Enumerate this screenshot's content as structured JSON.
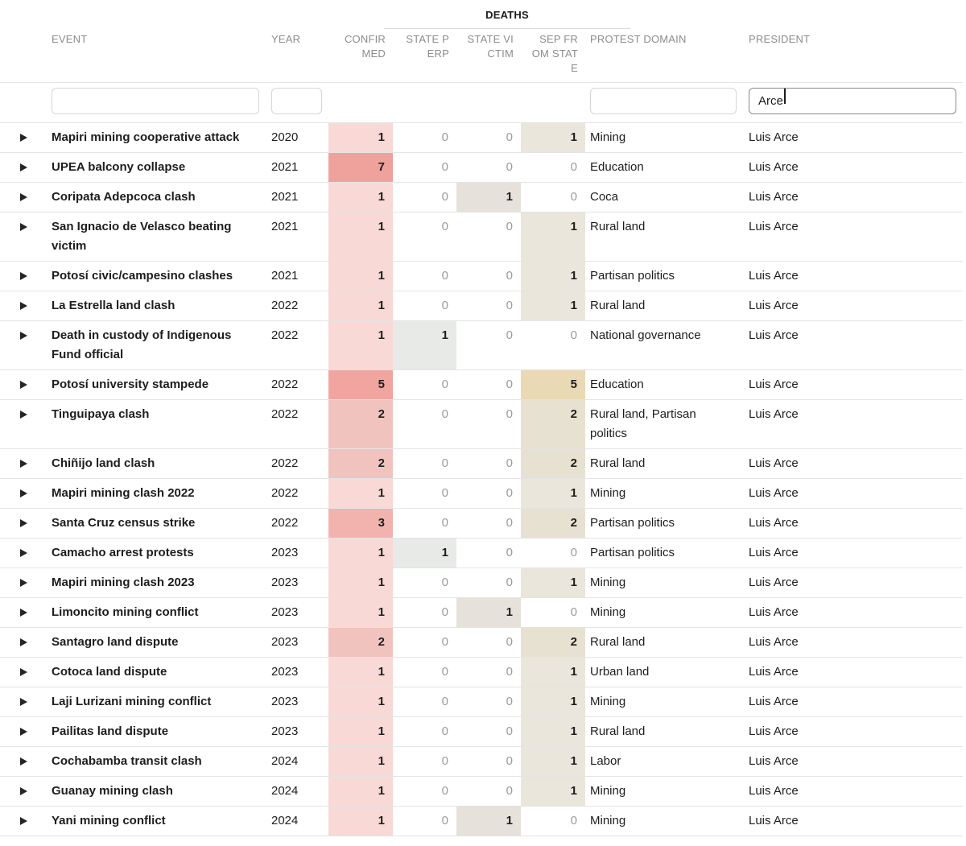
{
  "table": {
    "group_label": "DEATHS",
    "columns": [
      {
        "key": "event",
        "label": "EVENT"
      },
      {
        "key": "year",
        "label": "YEAR"
      },
      {
        "key": "confirmed",
        "label": "CONFIRMED"
      },
      {
        "key": "state_perp",
        "label": "STATE PERP"
      },
      {
        "key": "state_victim",
        "label": "STATE VICTIM"
      },
      {
        "key": "sep_from_state",
        "label": "SEP FROM STATE"
      },
      {
        "key": "protest_domain",
        "label": "PROTEST DOMAIN"
      },
      {
        "key": "president",
        "label": "PRESIDENT"
      }
    ],
    "filters": {
      "event": "",
      "year": "",
      "protest_domain": "",
      "president": "Arce"
    },
    "rows": [
      {
        "event": "Mapiri mining cooperative attack",
        "year": "2020",
        "confirmed": 1,
        "state_perp": 0,
        "state_victim": 0,
        "sep_from_state": 1,
        "protest_domain": "Mining",
        "president": "Luis Arce"
      },
      {
        "event": "UPEA balcony collapse",
        "year": "2021",
        "confirmed": 7,
        "state_perp": 0,
        "state_victim": 0,
        "sep_from_state": 0,
        "protest_domain": "Education",
        "president": "Luis Arce"
      },
      {
        "event": "Coripata Adepcoca clash",
        "year": "2021",
        "confirmed": 1,
        "state_perp": 0,
        "state_victim": 1,
        "sep_from_state": 0,
        "protest_domain": "Coca",
        "president": "Luis Arce"
      },
      {
        "event": "San Ignacio de Velasco beating victim",
        "year": "2021",
        "confirmed": 1,
        "state_perp": 0,
        "state_victim": 0,
        "sep_from_state": 1,
        "protest_domain": "Rural land",
        "president": "Luis Arce"
      },
      {
        "event": "Potosí civic/campesino clashes",
        "year": "2021",
        "confirmed": 1,
        "state_perp": 0,
        "state_victim": 0,
        "sep_from_state": 1,
        "protest_domain": "Partisan politics",
        "president": "Luis Arce"
      },
      {
        "event": "La Estrella land clash",
        "year": "2022",
        "confirmed": 1,
        "state_perp": 0,
        "state_victim": 0,
        "sep_from_state": 1,
        "protest_domain": "Rural land",
        "president": "Luis Arce"
      },
      {
        "event": "Death in custody of Indigenous Fund official",
        "year": "2022",
        "confirmed": 1,
        "state_perp": 1,
        "state_victim": 0,
        "sep_from_state": 0,
        "protest_domain": "National governance",
        "president": "Luis Arce"
      },
      {
        "event": "Potosí university stampede",
        "year": "2022",
        "confirmed": 5,
        "state_perp": 0,
        "state_victim": 0,
        "sep_from_state": 5,
        "protest_domain": "Education",
        "president": "Luis Arce"
      },
      {
        "event": "Tinguipaya clash",
        "year": "2022",
        "confirmed": 2,
        "state_perp": 0,
        "state_victim": 0,
        "sep_from_state": 2,
        "protest_domain": "Rural land, Partisan politics",
        "president": "Luis Arce"
      },
      {
        "event": "Chiñijo land clash",
        "year": "2022",
        "confirmed": 2,
        "state_perp": 0,
        "state_victim": 0,
        "sep_from_state": 2,
        "protest_domain": "Rural land",
        "president": "Luis Arce"
      },
      {
        "event": "Mapiri mining clash 2022",
        "year": "2022",
        "confirmed": 1,
        "state_perp": 0,
        "state_victim": 0,
        "sep_from_state": 1,
        "protest_domain": "Mining",
        "president": "Luis Arce"
      },
      {
        "event": "Santa Cruz census strike",
        "year": "2022",
        "confirmed": 3,
        "state_perp": 0,
        "state_victim": 0,
        "sep_from_state": 2,
        "protest_domain": "Partisan politics",
        "president": "Luis Arce"
      },
      {
        "event": "Camacho arrest protests",
        "year": "2023",
        "confirmed": 1,
        "state_perp": 1,
        "state_victim": 0,
        "sep_from_state": 0,
        "protest_domain": "Partisan politics",
        "president": "Luis Arce"
      },
      {
        "event": "Mapiri mining clash 2023",
        "year": "2023",
        "confirmed": 1,
        "state_perp": 0,
        "state_victim": 0,
        "sep_from_state": 1,
        "protest_domain": "Mining",
        "president": "Luis Arce"
      },
      {
        "event": "Limoncito mining conflict",
        "year": "2023",
        "confirmed": 1,
        "state_perp": 0,
        "state_victim": 1,
        "sep_from_state": 0,
        "protest_domain": "Mining",
        "president": "Luis Arce"
      },
      {
        "event": "Santagro land dispute",
        "year": "2023",
        "confirmed": 2,
        "state_perp": 0,
        "state_victim": 0,
        "sep_from_state": 2,
        "protest_domain": "Rural land",
        "president": "Luis Arce"
      },
      {
        "event": "Cotoca land dispute",
        "year": "2023",
        "confirmed": 1,
        "state_perp": 0,
        "state_victim": 0,
        "sep_from_state": 1,
        "protest_domain": "Urban land",
        "president": "Luis Arce"
      },
      {
        "event": "Laji Lurizani mining conflict",
        "year": "2023",
        "confirmed": 1,
        "state_perp": 0,
        "state_victim": 0,
        "sep_from_state": 1,
        "protest_domain": "Mining",
        "president": "Luis Arce"
      },
      {
        "event": "Pailitas land dispute",
        "year": "2023",
        "confirmed": 1,
        "state_perp": 0,
        "state_victim": 0,
        "sep_from_state": 1,
        "protest_domain": "Rural land",
        "president": "Luis Arce"
      },
      {
        "event": "Cochabamba transit clash",
        "year": "2024",
        "confirmed": 1,
        "state_perp": 0,
        "state_victim": 0,
        "sep_from_state": 1,
        "protest_domain": "Labor",
        "president": "Luis Arce"
      },
      {
        "event": "Guanay mining clash",
        "year": "2024",
        "confirmed": 1,
        "state_perp": 0,
        "state_victim": 0,
        "sep_from_state": 1,
        "protest_domain": "Mining",
        "president": "Luis Arce"
      },
      {
        "event": "Yani mining conflict",
        "year": "2024",
        "confirmed": 1,
        "state_perp": 0,
        "state_victim": 1,
        "sep_from_state": 0,
        "protest_domain": "Mining",
        "president": "Luis Arce"
      }
    ]
  },
  "colors": {
    "confirmed_scale": {
      "1": "#f8d9d6",
      "2": "#f1c3bf",
      "3": "#f2b3ae",
      "5": "#f0a5a0",
      "7": "#efa19b"
    },
    "state_perp_scale": {
      "1": "#e7eae6"
    },
    "state_victim_scale": {
      "1": "#e6e2db"
    },
    "sep_scale": {
      "1": "#eae6db",
      "2": "#e7e1d1",
      "5": "#e9d9b4"
    },
    "zero_text": "#9b9b9b",
    "positive_text": "#1d1d1d"
  }
}
